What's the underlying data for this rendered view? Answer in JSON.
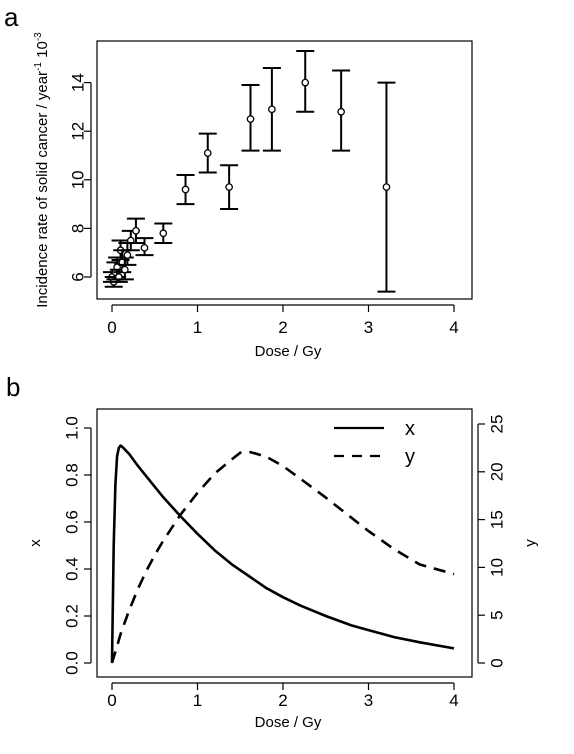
{
  "panels": {
    "a": {
      "letter": "a"
    },
    "b": {
      "letter": "b"
    }
  },
  "chart_data": [
    {
      "type": "scatter",
      "panel": "a",
      "title": "",
      "xlabel": "Dose / Gy",
      "ylabel": "Incidence rate of solid cancer / year",
      "ylabel_superscript": "-1",
      "ylabel_suffix": " 10",
      "ylabel_suffix_superscript": "-3",
      "xlim": [
        0,
        4
      ],
      "ylim": [
        5.5,
        15
      ],
      "xticks": [
        "0",
        "1",
        "2",
        "3",
        "4"
      ],
      "yticks": [
        "6",
        "8",
        "10",
        "12",
        "14"
      ],
      "grid": false,
      "error_bars": true,
      "points": [
        {
          "x": 0.0,
          "y": 6.0,
          "lo": 5.8,
          "hi": 6.2
        },
        {
          "x": 0.02,
          "y": 5.8,
          "lo": 5.6,
          "hi": 6.0
        },
        {
          "x": 0.04,
          "y": 6.2,
          "lo": 5.9,
          "hi": 6.6
        },
        {
          "x": 0.06,
          "y": 6.4,
          "lo": 6.0,
          "hi": 6.8
        },
        {
          "x": 0.08,
          "y": 6.0,
          "lo": 5.8,
          "hi": 6.3
        },
        {
          "x": 0.1,
          "y": 7.1,
          "lo": 6.7,
          "hi": 7.5
        },
        {
          "x": 0.12,
          "y": 6.6,
          "lo": 6.2,
          "hi": 7.1
        },
        {
          "x": 0.15,
          "y": 6.3,
          "lo": 5.9,
          "hi": 6.8
        },
        {
          "x": 0.18,
          "y": 6.9,
          "lo": 6.5,
          "hi": 7.4
        },
        {
          "x": 0.22,
          "y": 7.5,
          "lo": 7.1,
          "hi": 7.9
        },
        {
          "x": 0.28,
          "y": 7.9,
          "lo": 7.4,
          "hi": 8.4
        },
        {
          "x": 0.38,
          "y": 7.2,
          "lo": 6.9,
          "hi": 7.6
        },
        {
          "x": 0.6,
          "y": 7.8,
          "lo": 7.4,
          "hi": 8.2
        },
        {
          "x": 0.86,
          "y": 9.6,
          "lo": 9.0,
          "hi": 10.2
        },
        {
          "x": 1.12,
          "y": 11.1,
          "lo": 10.3,
          "hi": 11.9
        },
        {
          "x": 1.37,
          "y": 9.7,
          "lo": 8.8,
          "hi": 10.6
        },
        {
          "x": 1.62,
          "y": 12.5,
          "lo": 11.2,
          "hi": 13.9
        },
        {
          "x": 1.87,
          "y": 12.9,
          "lo": 11.2,
          "hi": 14.6
        },
        {
          "x": 2.26,
          "y": 14.0,
          "lo": 12.8,
          "hi": 15.3
        },
        {
          "x": 2.68,
          "y": 12.8,
          "lo": 11.2,
          "hi": 14.5
        },
        {
          "x": 3.21,
          "y": 9.7,
          "lo": 5.4,
          "hi": 14.0
        }
      ]
    },
    {
      "type": "line",
      "panel": "b",
      "title": "",
      "xlabel": "Dose / Gy",
      "ylabel_left": "x",
      "ylabel_right": "y",
      "xlim": [
        0,
        4
      ],
      "ylim_left": [
        0,
        1
      ],
      "ylim_right": [
        0,
        25
      ],
      "xticks": [
        "0",
        "1",
        "2",
        "3",
        "4"
      ],
      "yticks_left": [
        "0.0",
        "0.2",
        "0.4",
        "0.6",
        "0.8",
        "1.0"
      ],
      "yticks_right": [
        "0",
        "5",
        "10",
        "15",
        "20",
        "25"
      ],
      "grid": false,
      "legend_position": "top-right",
      "series": [
        {
          "name": "x",
          "axis": "left",
          "style": "solid",
          "x": [
            0.0,
            0.02,
            0.04,
            0.06,
            0.08,
            0.1,
            0.12,
            0.2,
            0.3,
            0.4,
            0.5,
            0.6,
            0.8,
            1.0,
            1.2,
            1.4,
            1.6,
            1.8,
            2.0,
            2.2,
            2.5,
            2.8,
            3.0,
            3.3,
            3.6,
            4.0
          ],
          "values": [
            0.0,
            0.5,
            0.76,
            0.88,
            0.915,
            0.925,
            0.92,
            0.89,
            0.84,
            0.795,
            0.75,
            0.705,
            0.625,
            0.55,
            0.48,
            0.42,
            0.37,
            0.32,
            0.28,
            0.245,
            0.2,
            0.16,
            0.14,
            0.11,
            0.088,
            0.062
          ]
        },
        {
          "name": "y",
          "axis": "right",
          "style": "dashed",
          "x": [
            0.0,
            0.05,
            0.1,
            0.2,
            0.3,
            0.4,
            0.5,
            0.6,
            0.8,
            1.0,
            1.2,
            1.4,
            1.5,
            1.6,
            1.8,
            2.0,
            2.2,
            2.5,
            2.8,
            3.0,
            3.3,
            3.6,
            4.0
          ],
          "values": [
            0.0,
            1.5,
            3.0,
            5.5,
            7.7,
            9.6,
            11.3,
            12.8,
            15.5,
            17.8,
            19.8,
            21.3,
            22.0,
            22.1,
            21.6,
            20.6,
            19.3,
            17.3,
            15.2,
            13.8,
            11.9,
            10.3,
            9.3
          ]
        }
      ]
    }
  ]
}
